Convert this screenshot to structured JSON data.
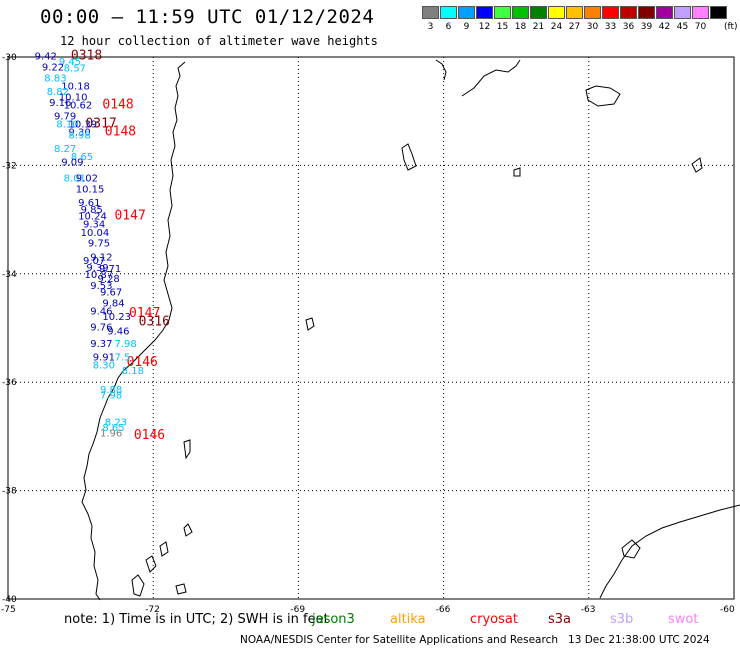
{
  "header": {
    "title": "00:00 – 11:59 UTC 01/12/2024",
    "subtitle": "12 hour collection of altimeter wave heights"
  },
  "legend": {
    "unit": "(ft)",
    "entries": [
      {
        "label": "3",
        "color": "#808080"
      },
      {
        "label": "6",
        "color": "#00ffff"
      },
      {
        "label": "9",
        "color": "#00a0ff"
      },
      {
        "label": "12",
        "color": "#0000ff"
      },
      {
        "label": "15",
        "color": "#40ff40"
      },
      {
        "label": "18",
        "color": "#00c000"
      },
      {
        "label": "21",
        "color": "#008000"
      },
      {
        "label": "24",
        "color": "#ffff00"
      },
      {
        "label": "27",
        "color": "#ffc000"
      },
      {
        "label": "30",
        "color": "#ff8000"
      },
      {
        "label": "33",
        "color": "#ff0000"
      },
      {
        "label": "36",
        "color": "#c00000"
      },
      {
        "label": "39",
        "color": "#800000"
      },
      {
        "label": "42",
        "color": "#a000a0"
      },
      {
        "label": "45",
        "color": "#c0a0ff"
      },
      {
        "label": "70",
        "color": "#ff80ff"
      },
      {
        "label": "",
        "color": "#000000"
      }
    ]
  },
  "axes": {
    "lat_labels": [
      "-30",
      "-32",
      "-34",
      "-36",
      "-38",
      "-40"
    ],
    "lon_labels": [
      "-75",
      "-72",
      "-69",
      "-66",
      "-63",
      "-60"
    ]
  },
  "passes": [
    {
      "text": "0318",
      "color": "#800000",
      "lat": -30.05,
      "lon": -73.7
    },
    {
      "text": "0148",
      "color": "#ff0000",
      "lat": -30.95,
      "lon": -73.05
    },
    {
      "text": "0317",
      "color": "#800000",
      "lat": -31.3,
      "lon": -73.4
    },
    {
      "text": "0148",
      "color": "#ff0000",
      "lat": -31.45,
      "lon": -73.0
    },
    {
      "text": "0147",
      "color": "#ff0000",
      "lat": -33.0,
      "lon": -72.8
    },
    {
      "text": "0147",
      "color": "#ff0000",
      "lat": -34.8,
      "lon": -72.5
    },
    {
      "text": "0316",
      "color": "#800000",
      "lat": -34.95,
      "lon": -72.3
    },
    {
      "text": "0146",
      "color": "#ff0000",
      "lat": -35.7,
      "lon": -72.55
    },
    {
      "text": "0146",
      "color": "#ff0000",
      "lat": -37.05,
      "lon": -72.4
    }
  ],
  "observations": [
    {
      "v": "9.42",
      "c": "#0000c0",
      "lat": -30.05,
      "lon": -74.45
    },
    {
      "v": "9.45",
      "c": "#00c0ff",
      "lat": -30.15,
      "lon": -73.95
    },
    {
      "v": "9.22",
      "c": "#0000c0",
      "lat": -30.25,
      "lon": -74.3
    },
    {
      "v": "8.57",
      "c": "#00c0ff",
      "lat": -30.27,
      "lon": -73.85
    },
    {
      "v": "8.83",
      "c": "#00c0ff",
      "lat": -30.45,
      "lon": -74.25
    },
    {
      "v": "10.18",
      "c": "#0000c0",
      "lat": -30.6,
      "lon": -73.9
    },
    {
      "v": "8.82",
      "c": "#00c0ff",
      "lat": -30.7,
      "lon": -74.2
    },
    {
      "v": "10.10",
      "c": "#0000c0",
      "lat": -30.8,
      "lon": -73.95
    },
    {
      "v": "9.16",
      "c": "#0000c0",
      "lat": -30.9,
      "lon": -74.15
    },
    {
      "v": "10.62",
      "c": "#0000c0",
      "lat": -30.95,
      "lon": -73.85
    },
    {
      "v": "9.79",
      "c": "#0000c0",
      "lat": -31.15,
      "lon": -74.05
    },
    {
      "v": "8.10",
      "c": "#00c0ff",
      "lat": -31.3,
      "lon": -74.0
    },
    {
      "v": "10.39",
      "c": "#0000c0",
      "lat": -31.3,
      "lon": -73.75
    },
    {
      "v": "9.30",
      "c": "#0000c0",
      "lat": -31.45,
      "lon": -73.75
    },
    {
      "v": "8.98",
      "c": "#00c0ff",
      "lat": -31.5,
      "lon": -73.75
    },
    {
      "v": "8.27",
      "c": "#00c0ff",
      "lat": -31.75,
      "lon": -74.05
    },
    {
      "v": "8.65",
      "c": "#00c0ff",
      "lat": -31.9,
      "lon": -73.7
    },
    {
      "v": "9.09",
      "c": "#0000c0",
      "lat": -32.0,
      "lon": -73.9
    },
    {
      "v": "8.01",
      "c": "#00c0ff",
      "lat": -32.3,
      "lon": -73.85
    },
    {
      "v": "9.02",
      "c": "#0000c0",
      "lat": -32.3,
      "lon": -73.6
    },
    {
      "v": "10.15",
      "c": "#0000c0",
      "lat": -32.5,
      "lon": -73.6
    },
    {
      "v": "9.61",
      "c": "#0000c0",
      "lat": -32.75,
      "lon": -73.55
    },
    {
      "v": "9.85",
      "c": "#0000c0",
      "lat": -32.88,
      "lon": -73.5
    },
    {
      "v": "10.24",
      "c": "#0000c0",
      "lat": -33.0,
      "lon": -73.55
    },
    {
      "v": "9.34",
      "c": "#0000c0",
      "lat": -33.15,
      "lon": -73.45
    },
    {
      "v": "10.04",
      "c": "#0000c0",
      "lat": -33.3,
      "lon": -73.5
    },
    {
      "v": "9.75",
      "c": "#0000c0",
      "lat": -33.5,
      "lon": -73.35
    },
    {
      "v": "9.12",
      "c": "#0000c0",
      "lat": -33.75,
      "lon": -73.3
    },
    {
      "v": "9.07",
      "c": "#0000c0",
      "lat": -33.82,
      "lon": -73.45
    },
    {
      "v": "9.39",
      "c": "#0000c0",
      "lat": -33.95,
      "lon": -73.38
    },
    {
      "v": "9.71",
      "c": "#0000c0",
      "lat": -33.97,
      "lon": -73.12
    },
    {
      "v": "10.87",
      "c": "#0000c0",
      "lat": -34.08,
      "lon": -73.42
    },
    {
      "v": "9.28",
      "c": "#0000c0",
      "lat": -34.15,
      "lon": -73.15
    },
    {
      "v": "9.53",
      "c": "#0000c0",
      "lat": -34.28,
      "lon": -73.3
    },
    {
      "v": "9.67",
      "c": "#0000c0",
      "lat": -34.4,
      "lon": -73.1
    },
    {
      "v": "9.84",
      "c": "#0000c0",
      "lat": -34.6,
      "lon": -73.05
    },
    {
      "v": "9.46",
      "c": "#0000c0",
      "lat": -34.75,
      "lon": -73.3
    },
    {
      "v": "10.23",
      "c": "#0000c0",
      "lat": -34.85,
      "lon": -73.05
    },
    {
      "v": "9.76",
      "c": "#0000c0",
      "lat": -35.05,
      "lon": -73.3
    },
    {
      "v": "9.46",
      "c": "#0000c0",
      "lat": -35.12,
      "lon": -72.95
    },
    {
      "v": "9.37",
      "c": "#0000c0",
      "lat": -35.35,
      "lon": -73.3
    },
    {
      "v": "7.98",
      "c": "#00c0ff",
      "lat": -35.35,
      "lon": -72.8
    },
    {
      "v": "9.91",
      "c": "#0000c0",
      "lat": -35.6,
      "lon": -73.25
    },
    {
      "v": "7.5",
      "c": "#00c0ff",
      "lat": -35.6,
      "lon": -72.8
    },
    {
      "v": "8.30",
      "c": "#00c0ff",
      "lat": -35.75,
      "lon": -73.25
    },
    {
      "v": "8.18",
      "c": "#00c0ff",
      "lat": -35.85,
      "lon": -72.65
    },
    {
      "v": "9.88",
      "c": "#00c0ff",
      "lat": -36.2,
      "lon": -73.1
    },
    {
      "v": "7.98",
      "c": "#00c0ff",
      "lat": -36.3,
      "lon": -73.1
    },
    {
      "v": "8.23",
      "c": "#00c0ff",
      "lat": -36.8,
      "lon": -73.0
    },
    {
      "v": "8.65",
      "c": "#00c0ff",
      "lat": -36.9,
      "lon": -73.05
    },
    {
      "v": "1.96",
      "c": "#808080",
      "lat": -37.0,
      "lon": -73.1
    }
  ],
  "footer": {
    "note": "note:  1) Time is in UTC; 2) SWH is in feet",
    "missions": [
      {
        "label": "jason3",
        "color": "#008000"
      },
      {
        "label": "altika",
        "color": "#ffa000"
      },
      {
        "label": "cryosat",
        "color": "#ff0000"
      },
      {
        "label": "s3a",
        "color": "#800000"
      },
      {
        "label": "s3b",
        "color": "#c0a0ff"
      },
      {
        "label": "swot",
        "color": "#ff80ff"
      }
    ],
    "credit": "NOAA/NESDIS Center for Satellite Applications and Research",
    "timestamp": "13 Dec 21:38:00 UTC 2024"
  }
}
